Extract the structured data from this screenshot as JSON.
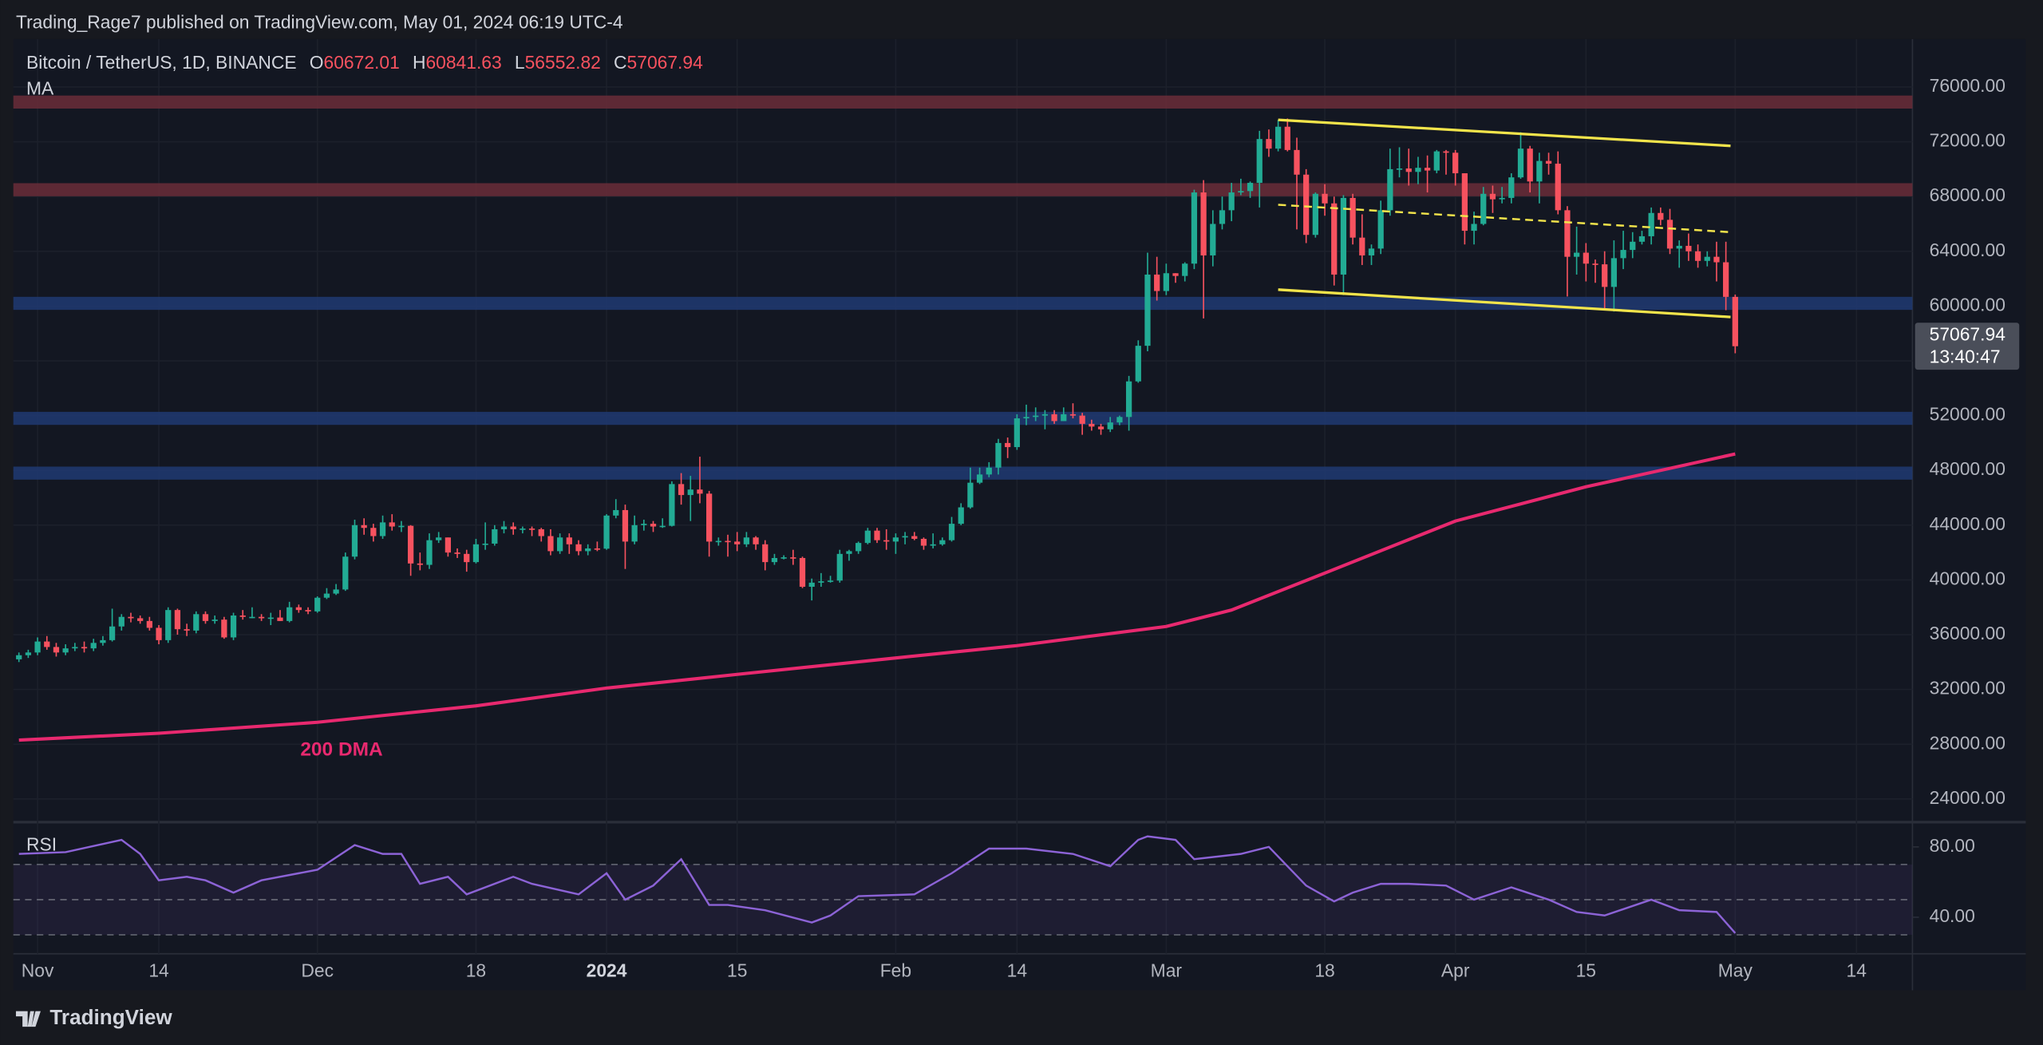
{
  "header": {
    "text": "Trading_Rage7 published on TradingView.com, May 01, 2024 06:19 UTC-4"
  },
  "chart_data": {
    "type": "candlestick",
    "symbol": "Bitcoin / TetherUS, 1D, BINANCE",
    "ohlc_labels": [
      "O",
      "H",
      "L",
      "C"
    ],
    "indicator": "MA",
    "up_color": "#22ab94",
    "down_color": "#f7525f",
    "candles": [
      [
        34200,
        34700,
        34000,
        34500
      ],
      [
        34500,
        34900,
        34300,
        34700
      ],
      [
        34700,
        35800,
        34500,
        35500
      ],
      [
        35500,
        35900,
        34900,
        35100
      ],
      [
        35100,
        35400,
        34400,
        34700
      ],
      [
        34700,
        35300,
        34500,
        35000
      ],
      [
        35000,
        35400,
        34800,
        35100
      ],
      [
        35100,
        35500,
        34700,
        35000
      ],
      [
        35000,
        35700,
        34800,
        35400
      ],
      [
        35400,
        35900,
        35200,
        35600
      ],
      [
        35600,
        37900,
        35500,
        36600
      ],
      [
        36600,
        37500,
        36300,
        37300
      ],
      [
        37300,
        37600,
        36900,
        37200
      ],
      [
        37200,
        37400,
        36800,
        37000
      ],
      [
        37000,
        37300,
        36300,
        36500
      ],
      [
        36500,
        36700,
        35300,
        35600
      ],
      [
        35600,
        38000,
        35400,
        37800
      ],
      [
        37800,
        37900,
        36000,
        36400
      ],
      [
        36400,
        36800,
        35900,
        36300
      ],
      [
        36300,
        37700,
        36100,
        37500
      ],
      [
        37500,
        37700,
        36800,
        37000
      ],
      [
        37000,
        37400,
        36800,
        37100
      ],
      [
        37100,
        37300,
        35700,
        35800
      ],
      [
        35800,
        37600,
        35600,
        37400
      ],
      [
        37400,
        37800,
        37100,
        37300
      ],
      [
        37300,
        38000,
        37200,
        37300
      ],
      [
        37300,
        37500,
        37000,
        37200
      ],
      [
        37200,
        37600,
        36700,
        37250
      ],
      [
        37250,
        37800,
        37000,
        37000
      ],
      [
        37000,
        38400,
        36900,
        38000
      ],
      [
        38000,
        38200,
        37600,
        37800
      ],
      [
        37800,
        38000,
        37500,
        37700
      ],
      [
        37700,
        38800,
        37600,
        38700
      ],
      [
        38700,
        39400,
        38600,
        39000
      ],
      [
        39000,
        39700,
        38900,
        39300
      ],
      [
        39300,
        42000,
        39200,
        41700
      ],
      [
        41700,
        44400,
        41500,
        44000
      ],
      [
        44000,
        44500,
        43300,
        43800
      ],
      [
        43800,
        44100,
        42800,
        43200
      ],
      [
        43200,
        44700,
        43000,
        44200
      ],
      [
        44200,
        44800,
        43600,
        43900
      ],
      [
        43900,
        44300,
        43500,
        43950
      ],
      [
        43950,
        44000,
        40300,
        41200
      ],
      [
        41200,
        42000,
        40700,
        41100
      ],
      [
        41100,
        43400,
        40800,
        42900
      ],
      [
        42900,
        43500,
        42700,
        43100
      ],
      [
        43100,
        43100,
        41700,
        42000
      ],
      [
        42000,
        42300,
        41600,
        41900
      ],
      [
        41900,
        42200,
        40600,
        41300
      ],
      [
        41300,
        43000,
        41200,
        42600
      ],
      [
        42600,
        44200,
        42200,
        42650
      ],
      [
        42650,
        44000,
        42500,
        43700
      ],
      [
        43700,
        44300,
        43400,
        43900
      ],
      [
        43900,
        44200,
        43300,
        43700
      ],
      [
        43700,
        43900,
        43400,
        43750
      ],
      [
        43750,
        43900,
        43200,
        43700
      ],
      [
        43700,
        43800,
        42800,
        43200
      ],
      [
        43200,
        43700,
        41800,
        42100
      ],
      [
        42100,
        43400,
        41900,
        43100
      ],
      [
        43100,
        43400,
        41900,
        42600
      ],
      [
        42600,
        42900,
        41800,
        42100
      ],
      [
        42100,
        42600,
        41800,
        42300
      ],
      [
        42300,
        42800,
        42100,
        42280
      ],
      [
        42280,
        44800,
        42200,
        44700
      ],
      [
        44700,
        45900,
        44500,
        45100
      ],
      [
        45100,
        45500,
        40800,
        42800
      ],
      [
        42800,
        44700,
        42600,
        44000
      ],
      [
        44000,
        44400,
        43600,
        44100
      ],
      [
        44100,
        44300,
        43500,
        43900
      ],
      [
        43900,
        44500,
        43800,
        43950
      ],
      [
        43950,
        47200,
        43900,
        47000
      ],
      [
        47000,
        47800,
        45500,
        46200
      ],
      [
        46200,
        47600,
        44300,
        46600
      ],
      [
        46600,
        49000,
        45600,
        46300
      ],
      [
        46300,
        46500,
        41700,
        42800
      ],
      [
        42800,
        43100,
        42500,
        42850
      ],
      [
        42850,
        43300,
        41700,
        42800
      ],
      [
        42800,
        43500,
        42100,
        42600
      ],
      [
        42600,
        43500,
        42400,
        43100
      ],
      [
        43100,
        43200,
        42200,
        42600
      ],
      [
        42600,
        42900,
        40700,
        41300
      ],
      [
        41300,
        41900,
        41100,
        41600
      ],
      [
        41600,
        41800,
        41500,
        41650
      ],
      [
        41650,
        42200,
        41100,
        41600
      ],
      [
        41600,
        41700,
        39400,
        39500
      ],
      [
        39500,
        40100,
        38500,
        39800
      ],
      [
        39800,
        40500,
        39500,
        39900
      ],
      [
        39900,
        40300,
        39800,
        39950
      ],
      [
        39950,
        42200,
        39800,
        41900
      ],
      [
        41900,
        42200,
        41400,
        42100
      ],
      [
        42100,
        42800,
        41900,
        42700
      ],
      [
        42700,
        43800,
        42600,
        43600
      ],
      [
        43600,
        43800,
        42700,
        42900
      ],
      [
        42900,
        43700,
        42200,
        42800
      ],
      [
        42800,
        43400,
        41900,
        43100
      ],
      [
        43100,
        43500,
        42600,
        43200
      ],
      [
        43200,
        43500,
        42900,
        43000
      ],
      [
        43000,
        43100,
        42200,
        42500
      ],
      [
        42500,
        43400,
        42300,
        42600
      ],
      [
        42600,
        43100,
        42500,
        42900
      ],
      [
        42900,
        44600,
        42800,
        44100
      ],
      [
        44100,
        45600,
        44000,
        45300
      ],
      [
        45300,
        48200,
        45200,
        47100
      ],
      [
        47100,
        48200,
        47000,
        47700
      ],
      [
        47700,
        48600,
        47500,
        48200
      ],
      [
        48200,
        50300,
        47700,
        50000
      ],
      [
        50000,
        50400,
        48900,
        49700
      ],
      [
        49700,
        52100,
        49500,
        51800
      ],
      [
        51800,
        52800,
        51300,
        51900
      ],
      [
        51900,
        52600,
        51600,
        52000
      ],
      [
        52000,
        52400,
        51000,
        52100
      ],
      [
        52100,
        52400,
        51400,
        51600
      ],
      [
        51600,
        52600,
        51600,
        52100
      ],
      [
        52100,
        52900,
        51800,
        52000
      ],
      [
        52000,
        52200,
        50600,
        51400
      ],
      [
        51400,
        51700,
        50900,
        51200
      ],
      [
        51200,
        51400,
        50600,
        51000
      ],
      [
        51000,
        51900,
        50800,
        51500
      ],
      [
        51500,
        52000,
        51300,
        51900
      ],
      [
        51900,
        54900,
        50900,
        54500
      ],
      [
        54500,
        57500,
        54400,
        57100
      ],
      [
        57100,
        63900,
        56700,
        62300
      ],
      [
        62300,
        63600,
        60400,
        61100
      ],
      [
        61100,
        63100,
        60800,
        62400
      ],
      [
        62400,
        62400,
        61700,
        62200
      ],
      [
        62200,
        63200,
        61800,
        63100
      ],
      [
        63100,
        68500,
        62700,
        68300
      ],
      [
        68300,
        69200,
        59100,
        63700
      ],
      [
        63700,
        67000,
        62900,
        66000
      ],
      [
        66000,
        68000,
        65600,
        67000
      ],
      [
        67000,
        69000,
        66200,
        68300
      ],
      [
        68300,
        69300,
        68100,
        68400
      ],
      [
        68400,
        69100,
        67900,
        69000
      ],
      [
        69000,
        72800,
        67200,
        72200
      ],
      [
        72200,
        72900,
        70900,
        71500
      ],
      [
        71500,
        73600,
        71300,
        73100
      ],
      [
        73100,
        73700,
        71300,
        71400
      ],
      [
        71400,
        72300,
        65600,
        69600
      ],
      [
        69600,
        70000,
        64600,
        65200
      ],
      [
        65200,
        68300,
        65000,
        68200
      ],
      [
        68200,
        68900,
        66600,
        67500
      ],
      [
        67500,
        68000,
        61500,
        62300
      ],
      [
        62300,
        68100,
        60800,
        67900
      ],
      [
        67900,
        68200,
        64500,
        65000
      ],
      [
        65000,
        66700,
        63000,
        63700
      ],
      [
        63700,
        64500,
        63000,
        64200
      ],
      [
        64200,
        67700,
        63800,
        67000
      ],
      [
        67000,
        71500,
        66600,
        70000
      ],
      [
        70000,
        71600,
        69400,
        70050
      ],
      [
        70050,
        71500,
        68800,
        69800
      ],
      [
        69800,
        70900,
        68900,
        70100
      ],
      [
        70100,
        71000,
        68300,
        69900
      ],
      [
        69900,
        71400,
        69700,
        71300
      ],
      [
        71300,
        71400,
        69600,
        71200
      ],
      [
        71200,
        71400,
        68800,
        69700
      ],
      [
        69700,
        69700,
        64500,
        65500
      ],
      [
        65500,
        66900,
        64500,
        66000
      ],
      [
        66000,
        68700,
        65900,
        68200
      ],
      [
        68200,
        68800,
        66800,
        67800
      ],
      [
        67800,
        68700,
        67500,
        67900
      ],
      [
        67900,
        69700,
        67500,
        69400
      ],
      [
        69400,
        72700,
        69300,
        71500
      ],
      [
        71500,
        71700,
        68300,
        69100
      ],
      [
        69100,
        71200,
        67500,
        70600
      ],
      [
        70600,
        71200,
        69600,
        70400
      ],
      [
        70400,
        71300,
        66700,
        67000
      ],
      [
        67000,
        67300,
        60700,
        63600
      ],
      [
        63600,
        65800,
        62300,
        63900
      ],
      [
        63900,
        64600,
        61800,
        63100
      ],
      [
        63100,
        63400,
        61700,
        63050
      ],
      [
        63050,
        64000,
        59800,
        61400
      ],
      [
        61400,
        64800,
        59600,
        63500
      ],
      [
        63500,
        65500,
        62700,
        64100
      ],
      [
        64100,
        65400,
        63500,
        64700
      ],
      [
        64700,
        65500,
        64500,
        65100
      ],
      [
        65100,
        67200,
        64500,
        66800
      ],
      [
        66800,
        67200,
        65900,
        66300
      ],
      [
        66300,
        67100,
        63800,
        64200
      ],
      [
        64200,
        64800,
        62800,
        64400
      ],
      [
        64400,
        65300,
        63300,
        64000
      ],
      [
        64000,
        64500,
        62800,
        63300
      ],
      [
        63300,
        64000,
        62900,
        63600
      ],
      [
        63600,
        64700,
        61800,
        63200
      ],
      [
        63200,
        64700,
        59700,
        60672.01
      ],
      [
        60672.01,
        60841.63,
        56552.82,
        57067.94
      ]
    ],
    "xlim": [
      -0.6,
      203
    ],
    "xticks": [
      {
        "value": 2,
        "label": "Nov"
      },
      {
        "value": 15,
        "label": "14"
      },
      {
        "value": 32,
        "label": "Dec"
      },
      {
        "value": 49,
        "label": "18"
      },
      {
        "value": 63,
        "label": "2024"
      },
      {
        "value": 77,
        "label": "15"
      },
      {
        "value": 94,
        "label": "Feb"
      },
      {
        "value": 107,
        "label": "14"
      },
      {
        "value": 123,
        "label": "Mar"
      },
      {
        "value": 140,
        "label": "18"
      },
      {
        "value": 154,
        "label": "Apr"
      },
      {
        "value": 168,
        "label": "15"
      },
      {
        "value": 184,
        "label": "May"
      },
      {
        "value": 197,
        "label": "14"
      }
    ],
    "ylim": [
      22400,
      79500
    ],
    "yticks": [
      {
        "value": 24000,
        "label": "24000.00"
      },
      {
        "value": 28000,
        "label": "28000.00"
      },
      {
        "value": 32000,
        "label": "32000.00"
      },
      {
        "value": 36000,
        "label": "36000.00"
      },
      {
        "value": 40000,
        "label": "40000.00"
      },
      {
        "value": 44000,
        "label": "44000.00"
      },
      {
        "value": 48000,
        "label": "48000.00"
      },
      {
        "value": 52000,
        "label": "52000.00"
      },
      {
        "value": 56000,
        "label": "56000.00"
      },
      {
        "value": 60000,
        "label": "60000.00"
      },
      {
        "value": 64000,
        "label": "64000.00"
      },
      {
        "value": 68000,
        "label": "68000.00"
      },
      {
        "value": 72000,
        "label": "72000.00"
      },
      {
        "value": 76000,
        "label": "76000.00"
      }
    ],
    "grid": true,
    "zones": [
      {
        "value": 74900,
        "color": "#6b2d38"
      },
      {
        "value": 68500,
        "color": "#6b2d38"
      },
      {
        "value": 60200,
        "color": "#203a72"
      },
      {
        "value": 51800,
        "color": "#203a72"
      },
      {
        "value": 47800,
        "color": "#203a72"
      }
    ],
    "ma": {
      "name": "200 DMA",
      "color": "#e8296f",
      "x": [
        0,
        15,
        32,
        49,
        63,
        77,
        94,
        107,
        123,
        130,
        140,
        154,
        168,
        184
      ],
      "values": [
        28300,
        28800,
        29600,
        30800,
        32100,
        33100,
        34300,
        35200,
        36600,
        37800,
        40500,
        44300,
        46800,
        49200
      ]
    },
    "trendlines": [
      {
        "color": "#f2e44b",
        "dashed": false,
        "x": [
          135,
          183.5
        ],
        "values": [
          73600,
          71700
        ]
      },
      {
        "color": "#f2e44b",
        "dashed": true,
        "x": [
          135,
          183.5
        ],
        "values": [
          67400,
          65400
        ]
      },
      {
        "color": "#f2e44b",
        "dashed": false,
        "x": [
          135,
          183.5
        ],
        "values": [
          61200,
          59200
        ]
      }
    ],
    "last_price_timer": "13:40:47",
    "rsi": {
      "name": "RSI",
      "color": "#8c63d6",
      "x": [
        0,
        5,
        11,
        13,
        15,
        18,
        20,
        23,
        26,
        30,
        32,
        36,
        39,
        41,
        43,
        46,
        48,
        53,
        55,
        60,
        63,
        65,
        68,
        71,
        74,
        76,
        80,
        85,
        87,
        90,
        96,
        100,
        104,
        108,
        113,
        117,
        120,
        121,
        124,
        126,
        131,
        134,
        138,
        141,
        143,
        146,
        149,
        153,
        156,
        160,
        164,
        167,
        170,
        175,
        178,
        182,
        184
      ],
      "values": [
        76,
        77,
        84,
        76,
        61,
        63,
        61,
        54,
        61,
        65,
        67,
        81,
        76,
        76,
        59,
        63,
        53,
        63,
        59,
        53,
        65,
        50,
        58,
        73,
        47,
        47,
        44,
        37,
        41,
        52,
        53,
        65,
        79,
        79,
        76,
        69,
        84,
        86,
        84,
        73,
        76,
        80,
        58,
        49,
        54,
        59,
        59,
        58,
        50,
        57,
        50,
        43,
        41,
        50,
        44,
        43,
        31
      ],
      "ylim": [
        20.7,
        93.3
      ],
      "yticks": [
        {
          "value": 80,
          "label": "80.00"
        },
        {
          "value": 40,
          "label": "40.00"
        }
      ],
      "levels": [
        70,
        50,
        30
      ]
    }
  },
  "footer": {
    "brand": "TradingView"
  }
}
